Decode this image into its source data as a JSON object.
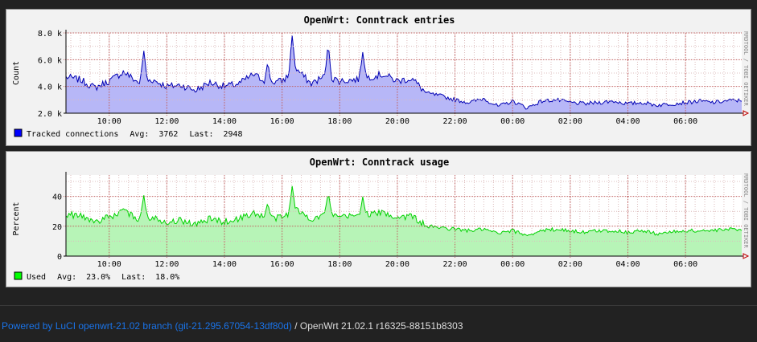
{
  "graphs": [
    {
      "title": "OpenWrt: Conntrack entries",
      "ylabel": "Count",
      "watermark": "RRDTOOL / TOBI OETIKER",
      "y_ticks": [
        "8.0 k",
        "6.0 k",
        "4.0 k",
        "2.0 k"
      ],
      "x_ticks": [
        "10:00",
        "12:00",
        "14:00",
        "16:00",
        "18:00",
        "20:00",
        "22:00",
        "00:00",
        "02:00",
        "04:00",
        "06:00"
      ],
      "legend": {
        "label": "Tracked connections",
        "avg_label": "Avg:",
        "avg": "3762",
        "last_label": "Last:",
        "last": "2948"
      },
      "fill_color": "#b7b7f7",
      "line_color": "#0000b4",
      "swatch_color": "#0000ff"
    },
    {
      "title": "OpenWrt: Conntrack usage",
      "ylabel": "Percent",
      "watermark": "RRDTOOL / TOBI OETIKER",
      "y_ticks": [
        "40",
        "20",
        "0"
      ],
      "x_ticks": [
        "10:00",
        "12:00",
        "14:00",
        "16:00",
        "18:00",
        "20:00",
        "22:00",
        "00:00",
        "02:00",
        "04:00",
        "06:00"
      ],
      "legend": {
        "label": "Used",
        "avg_label": "Avg:",
        "avg": "23.0%",
        "last_label": "Last:",
        "last": "18.0%"
      },
      "fill_color": "#b7f4b7",
      "line_color": "#00d200",
      "swatch_color": "#00ff00"
    }
  ],
  "chart_data": [
    {
      "type": "area",
      "title": "OpenWrt: Conntrack entries",
      "ylabel": "Count",
      "ylim": [
        2000,
        8000
      ],
      "grid": true,
      "x": [
        "08:30",
        "09:00",
        "09:30",
        "10:00",
        "10:30",
        "11:00",
        "11:30",
        "12:00",
        "12:30",
        "13:00",
        "13:30",
        "14:00",
        "14:30",
        "15:00",
        "15:30",
        "16:00",
        "16:30",
        "17:00",
        "17:30",
        "18:00",
        "18:30",
        "19:00",
        "19:30",
        "20:00",
        "20:30",
        "21:00",
        "21:30",
        "22:00",
        "22:30",
        "23:00",
        "23:30",
        "00:00",
        "00:30",
        "01:00",
        "01:30",
        "02:00",
        "02:30",
        "03:00",
        "03:30",
        "04:00",
        "04:30",
        "05:00",
        "05:30",
        "06:00",
        "06:30",
        "07:00",
        "07:30"
      ],
      "series": [
        {
          "name": "Tracked connections",
          "values": [
            4700,
            4500,
            3900,
            4400,
            5100,
            4300,
            4500,
            4000,
            4100,
            3700,
            4300,
            4000,
            4200,
            4900,
            4300,
            4400,
            5300,
            4200,
            4800,
            4400,
            4500,
            4700,
            4900,
            4400,
            4600,
            3500,
            3300,
            3000,
            2800,
            3100,
            2500,
            2900,
            2400,
            2900,
            3000,
            2800,
            2700,
            2800,
            2900,
            2700,
            2800,
            2600,
            2700,
            2800,
            2900,
            2800,
            2948
          ]
        }
      ],
      "spikes": [
        [
          6.5,
          5700
        ],
        [
          11.2,
          6700
        ],
        [
          15.5,
          5800
        ],
        [
          16.35,
          7800
        ],
        [
          17.6,
          7200
        ],
        [
          18.8,
          6600
        ]
      ]
    },
    {
      "type": "area",
      "title": "OpenWrt: Conntrack usage",
      "ylabel": "Percent",
      "ylim": [
        0,
        50
      ],
      "grid": true,
      "x": [
        "08:30",
        "09:00",
        "09:30",
        "10:00",
        "10:30",
        "11:00",
        "11:30",
        "12:00",
        "12:30",
        "13:00",
        "13:30",
        "14:00",
        "14:30",
        "15:00",
        "15:30",
        "16:00",
        "16:30",
        "17:00",
        "17:30",
        "18:00",
        "18:30",
        "19:00",
        "19:30",
        "20:00",
        "20:30",
        "21:00",
        "21:30",
        "22:00",
        "22:30",
        "23:00",
        "23:30",
        "00:00",
        "00:30",
        "01:00",
        "01:30",
        "02:00",
        "02:30",
        "03:00",
        "03:30",
        "04:00",
        "04:30",
        "05:00",
        "05:30",
        "06:00",
        "06:30",
        "07:00",
        "07:30"
      ],
      "series": [
        {
          "name": "Used",
          "values": [
            28,
            27,
            23,
            26,
            30,
            25,
            26,
            23,
            24,
            21,
            25,
            23,
            25,
            29,
            25,
            26,
            31,
            25,
            28,
            26,
            27,
            28,
            29,
            26,
            27,
            20,
            19,
            18,
            17,
            18,
            15,
            17,
            14,
            17,
            18,
            17,
            16,
            17,
            17,
            16,
            17,
            15,
            16,
            17,
            17,
            17,
            18
          ]
        }
      ],
      "spikes": [
        [
          6.5,
          34
        ],
        [
          11.2,
          41
        ],
        [
          15.5,
          36
        ],
        [
          16.35,
          47
        ],
        [
          17.6,
          43
        ],
        [
          18.8,
          40
        ]
      ]
    }
  ],
  "footer": {
    "link_text": "Powered by LuCI openwrt-21.02 branch (git-21.295.67054-13df80d)",
    "separator": " / ",
    "version": "OpenWrt 21.02.1 r16325-88151b8303"
  }
}
